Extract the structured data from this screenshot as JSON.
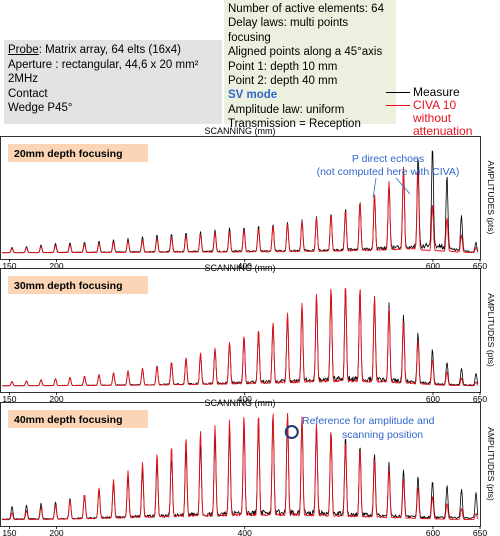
{
  "probe_info": {
    "probe_label": "Probe",
    "probe_value": ": Matrix array, 64 elts (16x4)",
    "aperture": "Aperture : rectangular, 44,6 x 20 mm²",
    "frequency": "2MHz",
    "contact": "Contact",
    "wedge": "Wedge P45°"
  },
  "parameters": {
    "active_elements": "Number of active elements: 64",
    "delay_laws": "Delay laws: multi points focusing",
    "aligned": "Aligned points along a 45°axis",
    "point1": "Point 1: depth 10 mm",
    "point2": "Point 2: depth 40 mm",
    "mode": "SV mode",
    "amplitude_law": "Amplitude law: uniform",
    "transmission": "Transmission = Reception"
  },
  "legend": {
    "measure": "Measure",
    "civa_line1": "CIVA 10",
    "civa_line2": "without attenuation"
  },
  "colors": {
    "measure": "#000000",
    "civa": "#e8101a",
    "label_bg": "#fbd5b5",
    "annotation": "#3366cc"
  },
  "chart_data": [
    {
      "type": "line",
      "title": "20mm depth focusing",
      "xlabel": "SCANNING (mm)",
      "ylabel": "AMPLITUDES (pts)",
      "xlim": [
        140,
        650
      ],
      "xticks_labeled": [
        150,
        200,
        400,
        600,
        650
      ],
      "grid": false,
      "annotation": {
        "line1": "P direct echoes",
        "line2": "(not computed here with CIVA)"
      },
      "series": [
        {
          "name": "Measure",
          "x": [
            148,
            170,
            200,
            225,
            250,
            275,
            300,
            325,
            350,
            375,
            400,
            425,
            450,
            475,
            500,
            525,
            545,
            565,
            580,
            592,
            600,
            610,
            625,
            640,
            650
          ],
          "y": [
            0.05,
            0.06,
            0.09,
            0.1,
            0.11,
            0.13,
            0.16,
            0.18,
            0.2,
            0.22,
            0.24,
            0.26,
            0.29,
            0.33,
            0.38,
            0.48,
            0.58,
            0.75,
            0.9,
            0.92,
            0.98,
            0.85,
            0.45,
            0.15,
            0.06
          ]
        },
        {
          "name": "CIVA 10 without attenuation",
          "x": [
            148,
            170,
            200,
            225,
            250,
            275,
            300,
            325,
            350,
            375,
            400,
            425,
            450,
            475,
            500,
            525,
            545,
            565,
            580,
            592,
            600,
            610,
            625,
            640,
            650
          ],
          "y": [
            0.04,
            0.05,
            0.07,
            0.08,
            0.09,
            0.11,
            0.13,
            0.15,
            0.17,
            0.19,
            0.21,
            0.24,
            0.27,
            0.32,
            0.37,
            0.47,
            0.58,
            0.75,
            0.88,
            0.5,
            0.45,
            0.38,
            0.22,
            0.08,
            0.03
          ]
        }
      ]
    },
    {
      "type": "line",
      "title": "30mm depth focusing",
      "xlabel": "SCANNING (mm)",
      "ylabel": "AMPLITUDES (pts)",
      "xlim": [
        140,
        650
      ],
      "xticks_labeled": [
        150,
        200,
        400,
        600,
        650
      ],
      "grid": false,
      "series": [
        {
          "name": "Measure",
          "x": [
            148,
            170,
            200,
            225,
            250,
            275,
            300,
            325,
            350,
            375,
            400,
            425,
            450,
            475,
            500,
            525,
            545,
            565,
            580,
            592,
            600,
            610,
            625,
            640,
            650
          ],
          "y": [
            0.04,
            0.05,
            0.07,
            0.09,
            0.11,
            0.14,
            0.18,
            0.23,
            0.3,
            0.38,
            0.47,
            0.57,
            0.7,
            0.84,
            0.95,
            0.9,
            0.82,
            0.7,
            0.55,
            0.42,
            0.34,
            0.25,
            0.18,
            0.14,
            0.1
          ]
        },
        {
          "name": "CIVA 10 without attenuation",
          "x": [
            148,
            170,
            200,
            225,
            250,
            275,
            300,
            325,
            350,
            375,
            400,
            425,
            450,
            475,
            500,
            525,
            545,
            565,
            580,
            592,
            600,
            610,
            625,
            640,
            650
          ],
          "y": [
            0.04,
            0.05,
            0.07,
            0.09,
            0.11,
            0.14,
            0.18,
            0.23,
            0.3,
            0.38,
            0.48,
            0.58,
            0.72,
            0.86,
            0.98,
            0.92,
            0.8,
            0.65,
            0.48,
            0.34,
            0.25,
            0.16,
            0.09,
            0.05,
            0.03
          ]
        }
      ]
    },
    {
      "type": "line",
      "title": "40mm depth focusing",
      "xlabel": "SCANNING (mm)",
      "ylabel": "AMPLITUDES (pts)",
      "xlim": [
        140,
        650
      ],
      "xticks_labeled": [
        150,
        200,
        400,
        600,
        650
      ],
      "grid": false,
      "annotation": {
        "line1": "Reference for amplitude and",
        "line2": "scanning position"
      },
      "reference_x": 450,
      "series": [
        {
          "name": "Measure",
          "x": [
            148,
            170,
            200,
            225,
            250,
            275,
            300,
            325,
            350,
            375,
            400,
            425,
            450,
            475,
            500,
            525,
            545,
            565,
            580,
            592,
            600,
            610,
            625,
            640,
            650
          ],
          "y": [
            0.12,
            0.14,
            0.17,
            0.22,
            0.3,
            0.4,
            0.5,
            0.6,
            0.7,
            0.8,
            0.88,
            0.94,
            0.98,
            0.9,
            0.8,
            0.68,
            0.58,
            0.48,
            0.42,
            0.38,
            0.36,
            0.34,
            0.3,
            0.27,
            0.24
          ]
        },
        {
          "name": "CIVA 10 without attenuation",
          "x": [
            148,
            170,
            200,
            225,
            250,
            275,
            300,
            325,
            350,
            375,
            400,
            425,
            450,
            475,
            500,
            525,
            545,
            565,
            580,
            592,
            600,
            610,
            625,
            640,
            650
          ],
          "y": [
            0.06,
            0.09,
            0.14,
            0.22,
            0.32,
            0.45,
            0.58,
            0.7,
            0.82,
            0.9,
            0.97,
            1.0,
            0.99,
            0.9,
            0.78,
            0.64,
            0.52,
            0.4,
            0.32,
            0.26,
            0.22,
            0.17,
            0.12,
            0.08,
            0.05
          ]
        }
      ]
    }
  ]
}
